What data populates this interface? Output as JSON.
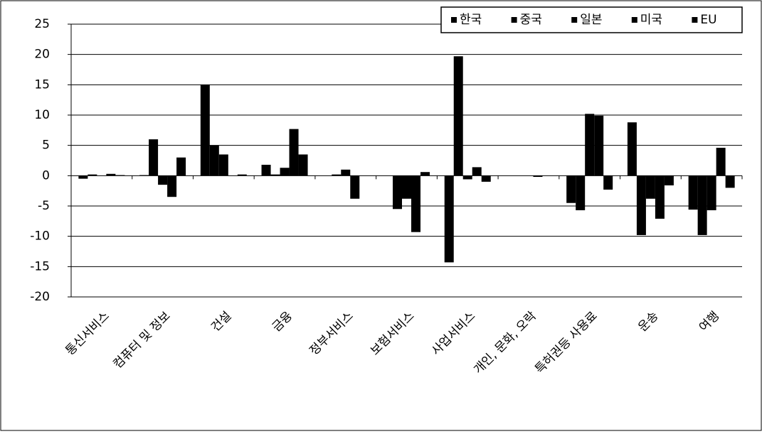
{
  "chart_data": {
    "type": "bar",
    "categories": [
      "통신서비스",
      "컴퓨터 및 정보",
      "건설",
      "금융",
      "정부서비스",
      "보험서비스",
      "사업서비스",
      "개인, 문화, 오락",
      "특허권등 사용료",
      "운송",
      "여행"
    ],
    "series": [
      {
        "name": "한국",
        "color": "#000000",
        "values": [
          -0.5,
          0.1,
          15,
          1.8,
          0,
          0,
          -14.3,
          0,
          -4.5,
          8.8,
          -5.6
        ]
      },
      {
        "name": "중국",
        "color": "#000000",
        "values": [
          0.2,
          6,
          5,
          0.2,
          0.2,
          -5.5,
          19.7,
          0,
          -5.7,
          -9.8,
          -9.8
        ]
      },
      {
        "name": "일본",
        "color": "#000000",
        "values": [
          0,
          -1.5,
          3.5,
          1.3,
          1,
          -3.8,
          -0.6,
          0,
          10.2,
          -3.8,
          -5.7
        ]
      },
      {
        "name": "미국",
        "color": "#000000",
        "values": [
          0.3,
          -3.5,
          0,
          7.7,
          -3.8,
          -9.3,
          1.4,
          -0.2,
          9.9,
          -7.1,
          4.6
        ]
      },
      {
        "name": "EU",
        "color": "#000000",
        "values": [
          0.1,
          3,
          0.2,
          3.5,
          0,
          0.6,
          -1,
          0,
          -2.3,
          -1.6,
          -2
        ]
      }
    ],
    "ylim": [
      -20,
      25
    ],
    "yticks": [
      -20,
      -15,
      -10,
      -5,
      0,
      5,
      10,
      15,
      20,
      25
    ],
    "grid": true,
    "legend": "top-right"
  }
}
